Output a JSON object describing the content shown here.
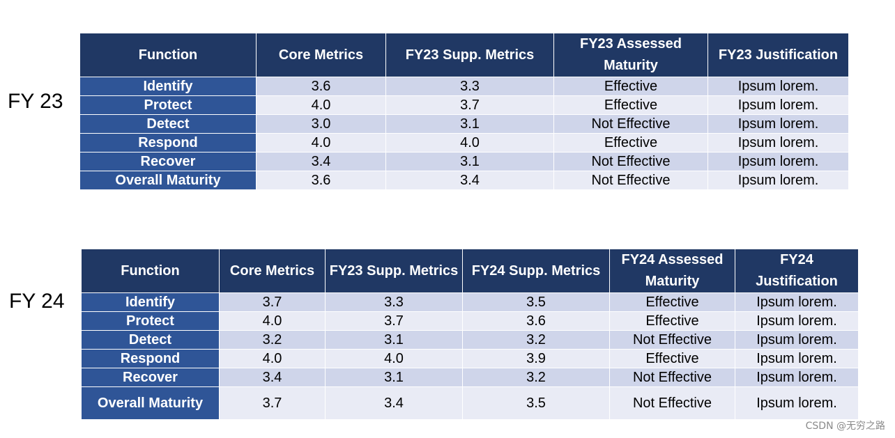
{
  "fy23": {
    "label": "FY 23",
    "headers": [
      "Function",
      "Core Metrics",
      "FY23 Supp. Metrics",
      "FY23 Assessed Maturity",
      "FY23 Justification"
    ],
    "rows": [
      [
        "Identify",
        "3.6",
        "3.3",
        "Effective",
        "Ipsum lorem."
      ],
      [
        "Protect",
        "4.0",
        "3.7",
        "Effective",
        "Ipsum lorem."
      ],
      [
        "Detect",
        "3.0",
        "3.1",
        "Not Effective",
        "Ipsum lorem."
      ],
      [
        "Respond",
        "4.0",
        "4.0",
        "Effective",
        "Ipsum lorem."
      ],
      [
        "Recover",
        "3.4",
        "3.1",
        "Not Effective",
        "Ipsum lorem."
      ],
      [
        "Overall Maturity",
        "3.6",
        "3.4",
        "Not Effective",
        "Ipsum lorem."
      ]
    ]
  },
  "fy24": {
    "label": "FY 24",
    "headers": [
      "Function",
      "Core Metrics",
      "FY23 Supp. Metrics",
      "FY24 Supp. Metrics",
      "FY24 Assessed Maturity",
      "FY24 Justification"
    ],
    "rows": [
      [
        "Identify",
        "3.7",
        "3.3",
        "3.5",
        "Effective",
        "Ipsum lorem."
      ],
      [
        "Protect",
        "4.0",
        "3.7",
        "3.6",
        "Effective",
        "Ipsum lorem."
      ],
      [
        "Detect",
        "3.2",
        "3.1",
        "3.2",
        "Not Effective",
        "Ipsum lorem."
      ],
      [
        "Respond",
        "4.0",
        "4.0",
        "3.9",
        "Effective",
        "Ipsum lorem."
      ],
      [
        "Recover",
        "3.4",
        "3.1",
        "3.2",
        "Not Effective",
        "Ipsum lorem."
      ],
      [
        "Overall Maturity",
        "3.7",
        "3.4",
        "3.5",
        "Not Effective",
        "Ipsum lorem."
      ]
    ]
  },
  "watermark": "CSDN @无穷之路"
}
